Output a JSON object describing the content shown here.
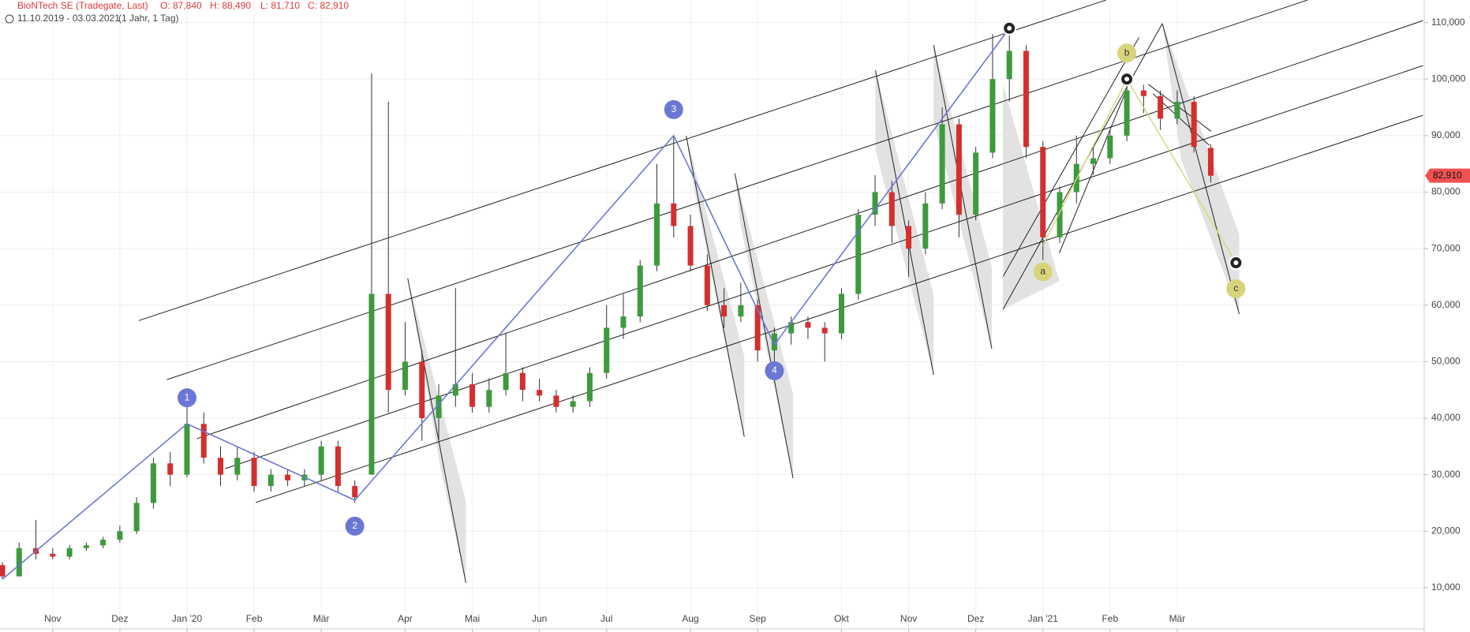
{
  "chart_data": {
    "type": "candlestick",
    "title": "BioNTech SE (Tradegate, Last)",
    "ohlc_header": [
      "O: 87,840",
      "H: 88,490",
      "L: 81,710",
      "C: 82,910"
    ],
    "date_range": "11.10.2019 - 03.03.2021",
    "period": "(1 Jahr, 1 Tag)",
    "categories": [
      null,
      null,
      null,
      "Nov",
      null,
      null,
      null,
      "Dez",
      null,
      null,
      null,
      "Jan '20",
      null,
      null,
      null,
      "Feb",
      null,
      null,
      null,
      "Mär",
      null,
      null,
      null,
      null,
      "Apr",
      null,
      null,
      null,
      "Mai",
      null,
      null,
      null,
      "Jun",
      null,
      null,
      null,
      "Jul",
      null,
      null,
      null,
      null,
      "Aug",
      null,
      null,
      null,
      "Sep",
      null,
      null,
      null,
      null,
      "Okt",
      null,
      null,
      null,
      "Nov",
      null,
      null,
      null,
      "Dez",
      null,
      null,
      null,
      "Jan '21",
      null,
      null,
      null,
      "Feb",
      null,
      null,
      null,
      "Mär",
      null,
      null
    ],
    "open": [
      14000,
      12000,
      17000,
      16000,
      15500,
      17000,
      17500,
      18500,
      20000,
      25000,
      32000,
      30000,
      39000,
      33000,
      30000,
      33000,
      28000,
      30000,
      29000,
      30000,
      35000,
      28000,
      30000,
      62000,
      45000,
      50000,
      40000,
      44000,
      46000,
      42000,
      45000,
      48000,
      45000,
      44000,
      42000,
      43000,
      48000,
      56000,
      58000,
      67000,
      78000,
      74000,
      67000,
      60000,
      58000,
      60000,
      52000,
      55000,
      57000,
      56000,
      55000,
      62000,
      76000,
      80000,
      74000,
      70000,
      78000,
      92000,
      76000,
      87000,
      100000,
      105000,
      88000,
      72000,
      80000,
      85000,
      86000,
      90000,
      98000,
      97000,
      93000,
      96000,
      87840
    ],
    "high": [
      14500,
      18000,
      22000,
      17000,
      17500,
      18000,
      19000,
      21000,
      26000,
      33000,
      34000,
      42000,
      41000,
      35000,
      35000,
      34000,
      31000,
      31000,
      31000,
      36000,
      36000,
      29000,
      101000,
      96000,
      57000,
      52000,
      46000,
      63000,
      48000,
      47000,
      55000,
      49000,
      47000,
      45000,
      44000,
      49000,
      60000,
      62000,
      68000,
      85000,
      90000,
      76000,
      69000,
      63000,
      64000,
      61000,
      56000,
      58000,
      58000,
      57000,
      63000,
      77000,
      83000,
      82000,
      75000,
      80000,
      95000,
      93000,
      88000,
      108000,
      110000,
      106000,
      89000,
      81000,
      90000,
      88000,
      91000,
      100000,
      99000,
      98000,
      98000,
      97000,
      88490
    ],
    "low": [
      11500,
      12000,
      15000,
      15000,
      15000,
      16500,
      17000,
      18000,
      19500,
      24000,
      28000,
      29500,
      32000,
      28000,
      29000,
      27000,
      27000,
      28000,
      28000,
      29000,
      27000,
      25000,
      30000,
      41000,
      44000,
      36000,
      36000,
      42000,
      41000,
      41000,
      44000,
      43000,
      43000,
      41000,
      41000,
      42000,
      47000,
      54000,
      57000,
      66000,
      72000,
      66000,
      59000,
      56000,
      57000,
      50000,
      47000,
      53000,
      54000,
      50000,
      54000,
      61000,
      74000,
      71000,
      65000,
      69000,
      77000,
      72000,
      75000,
      86000,
      96000,
      86000,
      68000,
      71000,
      78000,
      83000,
      85000,
      89000,
      94000,
      91000,
      92000,
      87000,
      81710
    ],
    "close": [
      12000,
      17000,
      16000,
      15500,
      17000,
      17500,
      18500,
      20000,
      25000,
      32000,
      30000,
      39000,
      33000,
      30000,
      33000,
      28000,
      30000,
      29000,
      30000,
      35000,
      28000,
      26000,
      62000,
      45000,
      50000,
      40000,
      44000,
      46000,
      42000,
      45000,
      48000,
      45000,
      44000,
      42000,
      43000,
      48000,
      56000,
      58000,
      67000,
      78000,
      74000,
      67000,
      60000,
      58000,
      60000,
      52000,
      55000,
      57000,
      56000,
      55000,
      62000,
      76000,
      80000,
      74000,
      70000,
      78000,
      92000,
      76000,
      87000,
      100000,
      105000,
      88000,
      72000,
      80000,
      85000,
      86000,
      90000,
      98000,
      97000,
      93000,
      96000,
      88000,
      82910
    ],
    "up_color": "#3d9a3d",
    "down_color": "#d42f2f",
    "last_price": {
      "value": 82910,
      "label": "82,910"
    },
    "ylim": [
      3000,
      114000
    ],
    "yticks": [
      {
        "value": 10000,
        "label": "10,000"
      },
      {
        "value": 20000,
        "label": "20,000"
      },
      {
        "value": 30000,
        "label": "30,000"
      },
      {
        "value": 40000,
        "label": "40,000"
      },
      {
        "value": 50000,
        "label": "50,000"
      },
      {
        "value": 60000,
        "label": "60,000"
      },
      {
        "value": 70000,
        "label": "70,000"
      },
      {
        "value": 80000,
        "label": "80,000"
      },
      {
        "value": 90000,
        "label": "90,000"
      },
      {
        "value": 100000,
        "label": "100,000"
      },
      {
        "value": 110000,
        "label": "110,000"
      }
    ],
    "grid": true,
    "impulse_wave": {
      "color": "#6b77d4",
      "points": [
        {
          "x": 0,
          "y": 11500
        },
        {
          "x": 11,
          "y": 39000,
          "label": "1"
        },
        {
          "x": 21,
          "y": 25500,
          "label": "2"
        },
        {
          "x": 40,
          "y": 90000,
          "label": "3"
        },
        {
          "x": 46,
          "y": 53000,
          "label": "4"
        },
        {
          "x": 60,
          "y": 109000
        }
      ]
    },
    "correction_wave": {
      "color": "#d8d47c",
      "points": [
        {
          "x": 62,
          "y": 70500,
          "label": "a"
        },
        {
          "x": 67,
          "y": 100000,
          "label": "b"
        },
        {
          "x": 73.5,
          "y": 67500,
          "label": "c"
        }
      ]
    }
  }
}
